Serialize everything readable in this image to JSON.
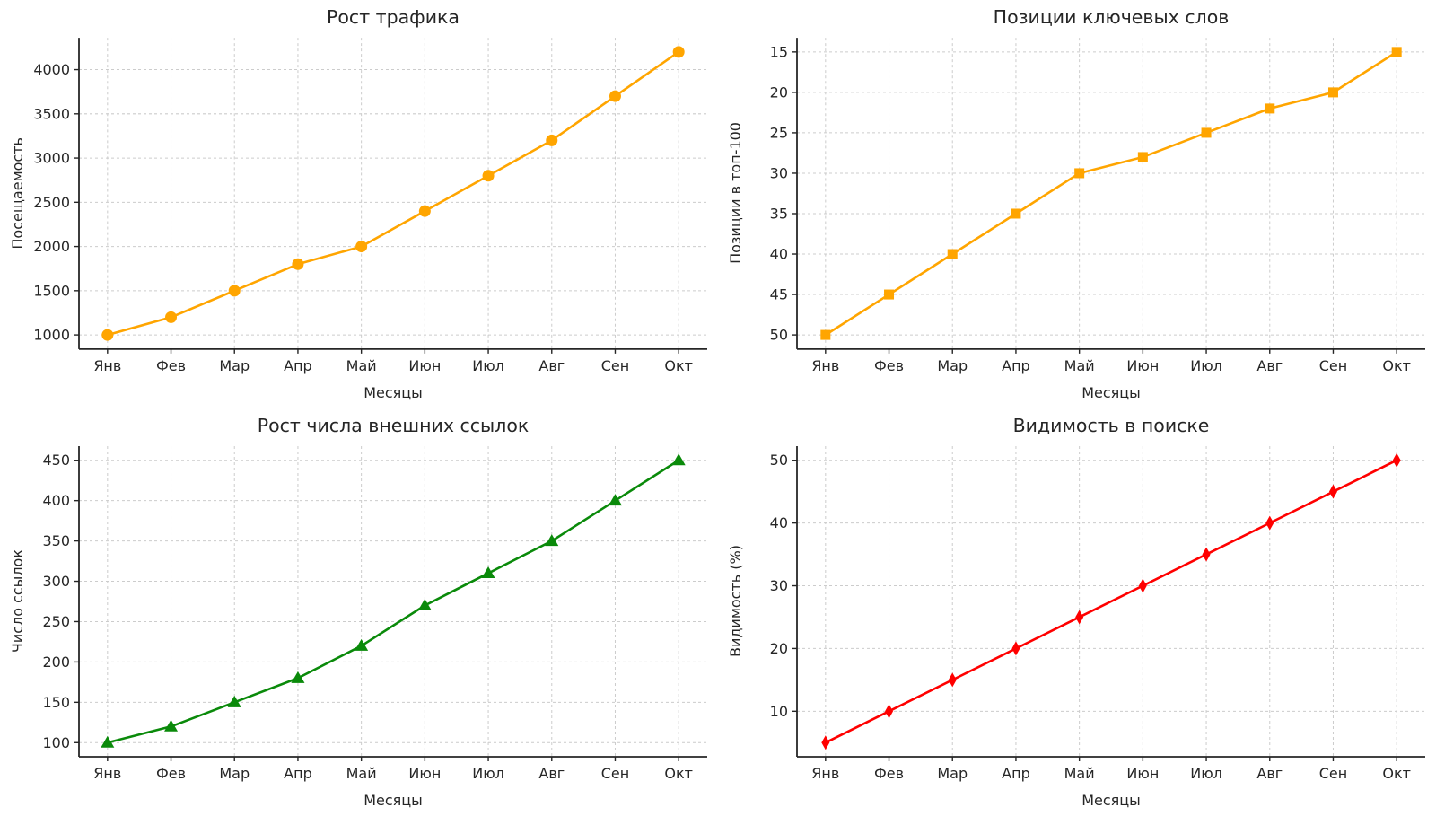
{
  "page": {
    "background": "#ffffff",
    "layout": "2x2-subplot-grid"
  },
  "chart_data": [
    {
      "type": "line",
      "title": "Рост трафика",
      "xlabel": "Месяцы",
      "ylabel": "Посещаемость",
      "categories": [
        "Янв",
        "Фев",
        "Мар",
        "Апр",
        "Май",
        "Июн",
        "Июл",
        "Авг",
        "Сен",
        "Окт"
      ],
      "values": [
        1000,
        1200,
        1500,
        1800,
        2000,
        2400,
        2800,
        3200,
        3700,
        4200
      ],
      "color": "#FFA500",
      "marker": "circle",
      "yticks": [
        1000,
        1500,
        2000,
        2500,
        3000,
        3500,
        4000
      ],
      "ylim": [
        840,
        4360
      ],
      "y_inverted": false,
      "grid": true,
      "legend": "none"
    },
    {
      "type": "line",
      "title": "Позиции ключевых слов",
      "xlabel": "Месяцы",
      "ylabel": "Позиции в топ-100",
      "categories": [
        "Янв",
        "Фев",
        "Мар",
        "Апр",
        "Май",
        "Июн",
        "Июл",
        "Авг",
        "Сен",
        "Окт"
      ],
      "values": [
        50,
        45,
        40,
        35,
        30,
        28,
        25,
        22,
        20,
        15
      ],
      "color": "#FFA500",
      "marker": "square",
      "yticks": [
        15,
        20,
        25,
        30,
        35,
        40,
        45,
        50
      ],
      "ylim": [
        13.25,
        51.75
      ],
      "y_inverted": true,
      "grid": true,
      "legend": "none"
    },
    {
      "type": "line",
      "title": "Рост числа внешних ссылок",
      "xlabel": "Месяцы",
      "ylabel": "Число ссылок",
      "categories": [
        "Янв",
        "Фев",
        "Мар",
        "Апр",
        "Май",
        "Июн",
        "Июл",
        "Авг",
        "Сен",
        "Окт"
      ],
      "values": [
        100,
        120,
        150,
        180,
        220,
        270,
        310,
        350,
        400,
        450
      ],
      "color": "#0a8a0a",
      "marker": "triangle",
      "yticks": [
        100,
        150,
        200,
        250,
        300,
        350,
        400,
        450
      ],
      "ylim": [
        82.5,
        467.5
      ],
      "y_inverted": false,
      "grid": true,
      "legend": "none"
    },
    {
      "type": "line",
      "title": "Видимость в поиске",
      "xlabel": "Месяцы",
      "ylabel": "Видимость (%)",
      "categories": [
        "Янв",
        "Фев",
        "Мар",
        "Апр",
        "Май",
        "Июн",
        "Июл",
        "Авг",
        "Сен",
        "Окт"
      ],
      "values": [
        5,
        10,
        15,
        20,
        25,
        30,
        35,
        40,
        45,
        50
      ],
      "color": "#FF0000",
      "marker": "diamond",
      "yticks": [
        10,
        20,
        30,
        40,
        50
      ],
      "ylim": [
        2.75,
        52.25
      ],
      "y_inverted": false,
      "grid": true,
      "legend": "none"
    }
  ]
}
